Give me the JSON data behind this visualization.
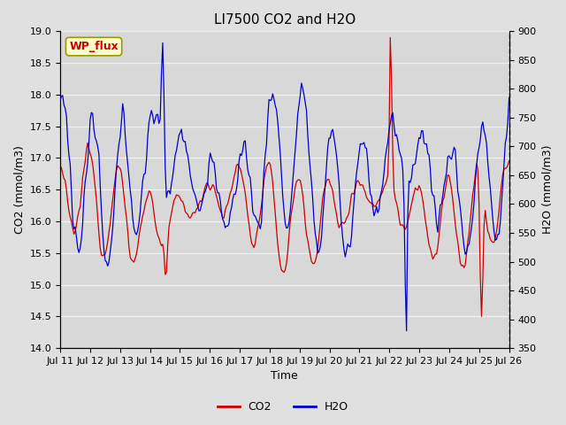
{
  "title": "LI7500 CO2 and H2O",
  "xlabel": "Time",
  "ylabel_left": "CO2 (mmol/m3)",
  "ylabel_right": "H2O (mmol/m3)",
  "co2_ylim": [
    14.0,
    19.0
  ],
  "h2o_ylim": [
    350,
    900
  ],
  "co2_yticks": [
    14.0,
    14.5,
    15.0,
    15.5,
    16.0,
    16.5,
    17.0,
    17.5,
    18.0,
    18.5,
    19.0
  ],
  "h2o_yticks": [
    350,
    400,
    450,
    500,
    550,
    600,
    650,
    700,
    750,
    800,
    850,
    900
  ],
  "xtick_labels": [
    "Jul 11",
    "Jul 12",
    "Jul 13",
    "Jul 14",
    "Jul 15",
    "Jul 16",
    "Jul 17",
    "Jul 18",
    "Jul 19",
    "Jul 20",
    "Jul 21",
    "Jul 22",
    "Jul 23",
    "Jul 24",
    "Jul 25",
    "Jul 26"
  ],
  "annotation_text": "WP_flux",
  "bg_color": "#e0e0e0",
  "plot_bg_color": "#d8d8d8",
  "title_fontsize": 11,
  "axis_label_fontsize": 9,
  "tick_fontsize": 8,
  "legend_fontsize": 9,
  "co2_color": "#cc0000",
  "h2o_color": "#0000cc",
  "grid_color": "#f0f0f0",
  "annotation_facecolor": "#ffffcc",
  "annotation_edgecolor": "#999900",
  "annotation_textcolor": "#cc0000"
}
